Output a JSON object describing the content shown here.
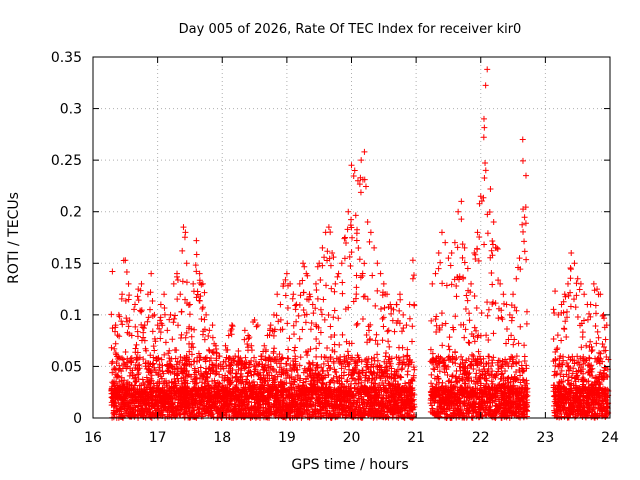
{
  "chart_data": {
    "type": "scatter",
    "title": "Day 005 of 2026, Rate Of TEC Index for receiver kir0",
    "xlabel": "GPS time / hours",
    "ylabel": "ROTI / TECUs",
    "xlim": [
      16,
      24
    ],
    "ylim": [
      0,
      0.35
    ],
    "xticks": [
      "16",
      "17",
      "18",
      "19",
      "20",
      "21",
      "22",
      "23",
      "24"
    ],
    "yticks": [
      "0",
      "0.05",
      "0.1",
      "0.15",
      "0.2",
      "0.25",
      "0.3",
      "0.35"
    ],
    "grid": true,
    "marker": "+",
    "color": "#ff0000",
    "series": [
      {
        "name": "kir0",
        "data_gaps_hours": [
          [
            21.0,
            21.2
          ],
          [
            22.8,
            23.1
          ]
        ],
        "x": [
          16.3,
          16.35,
          16.4,
          16.45,
          16.5,
          16.55,
          16.6,
          16.65,
          16.7,
          16.75,
          16.8,
          16.85,
          16.9,
          16.95,
          17.0,
          17.05,
          17.1,
          17.15,
          17.2,
          17.25,
          17.3,
          17.35,
          17.4,
          17.43,
          17.45,
          17.5,
          17.55,
          17.6,
          17.65,
          17.7,
          17.75,
          17.8,
          17.85,
          17.9,
          17.95,
          18.0,
          18.05,
          18.1,
          18.15,
          18.2,
          18.25,
          18.3,
          18.35,
          18.4,
          18.45,
          18.5,
          18.55,
          18.6,
          18.65,
          18.7,
          18.75,
          18.8,
          18.85,
          18.9,
          18.95,
          19.0,
          19.05,
          19.1,
          19.15,
          19.2,
          19.25,
          19.3,
          19.35,
          19.4,
          19.45,
          19.5,
          19.55,
          19.6,
          19.65,
          19.7,
          19.75,
          19.8,
          19.85,
          19.9,
          19.95,
          20.0,
          20.05,
          20.1,
          20.15,
          20.2,
          20.25,
          20.3,
          20.35,
          20.4,
          20.45,
          20.5,
          20.55,
          20.6,
          20.65,
          20.7,
          20.75,
          20.8,
          20.85,
          20.9,
          20.95,
          21.25,
          21.3,
          21.35,
          21.4,
          21.45,
          21.5,
          21.55,
          21.6,
          21.65,
          21.7,
          21.75,
          21.8,
          21.85,
          21.9,
          21.95,
          22.0,
          22.05,
          22.1,
          22.15,
          22.2,
          22.25,
          22.3,
          22.35,
          22.4,
          22.45,
          22.5,
          22.55,
          22.6,
          22.65,
          22.7,
          23.15,
          23.2,
          23.25,
          23.3,
          23.35,
          23.4,
          23.45,
          23.5,
          23.55,
          23.6,
          23.65,
          23.7,
          23.75,
          23.8,
          23.85,
          23.9,
          23.95
        ],
        "y": [
          0.142,
          0.09,
          0.1,
          0.12,
          0.153,
          0.13,
          0.08,
          0.11,
          0.125,
          0.13,
          0.09,
          0.12,
          0.14,
          0.1,
          0.09,
          0.11,
          0.12,
          0.085,
          0.1,
          0.13,
          0.14,
          0.12,
          0.185,
          0.18,
          0.15,
          0.11,
          0.13,
          0.172,
          0.14,
          0.13,
          0.1,
          0.085,
          0.09,
          0.07,
          0.06,
          0.05,
          0.07,
          0.08,
          0.09,
          0.06,
          0.065,
          0.055,
          0.085,
          0.08,
          0.07,
          0.095,
          0.09,
          0.06,
          0.07,
          0.08,
          0.09,
          0.1,
          0.12,
          0.11,
          0.13,
          0.14,
          0.13,
          0.12,
          0.11,
          0.13,
          0.15,
          0.14,
          0.12,
          0.11,
          0.13,
          0.15,
          0.165,
          0.18,
          0.185,
          0.16,
          0.13,
          0.14,
          0.15,
          0.175,
          0.2,
          0.245,
          0.24,
          0.23,
          0.25,
          0.258,
          0.19,
          0.18,
          0.165,
          0.15,
          0.14,
          0.13,
          0.12,
          0.11,
          0.105,
          0.11,
          0.12,
          0.1,
          0.09,
          0.11,
          0.153,
          0.13,
          0.14,
          0.16,
          0.18,
          0.17,
          0.155,
          0.16,
          0.17,
          0.2,
          0.21,
          0.165,
          0.145,
          0.13,
          0.16,
          0.18,
          0.215,
          0.29,
          0.338,
          0.222,
          0.19,
          0.165,
          0.13,
          0.12,
          0.11,
          0.1,
          0.12,
          0.135,
          0.155,
          0.27,
          0.235,
          0.123,
          0.1,
          0.11,
          0.12,
          0.13,
          0.16,
          0.15,
          0.135,
          0.13,
          0.12,
          0.11,
          0.11,
          0.13,
          0.125,
          0.12,
          0.1,
          0.09
        ]
      }
    ]
  }
}
